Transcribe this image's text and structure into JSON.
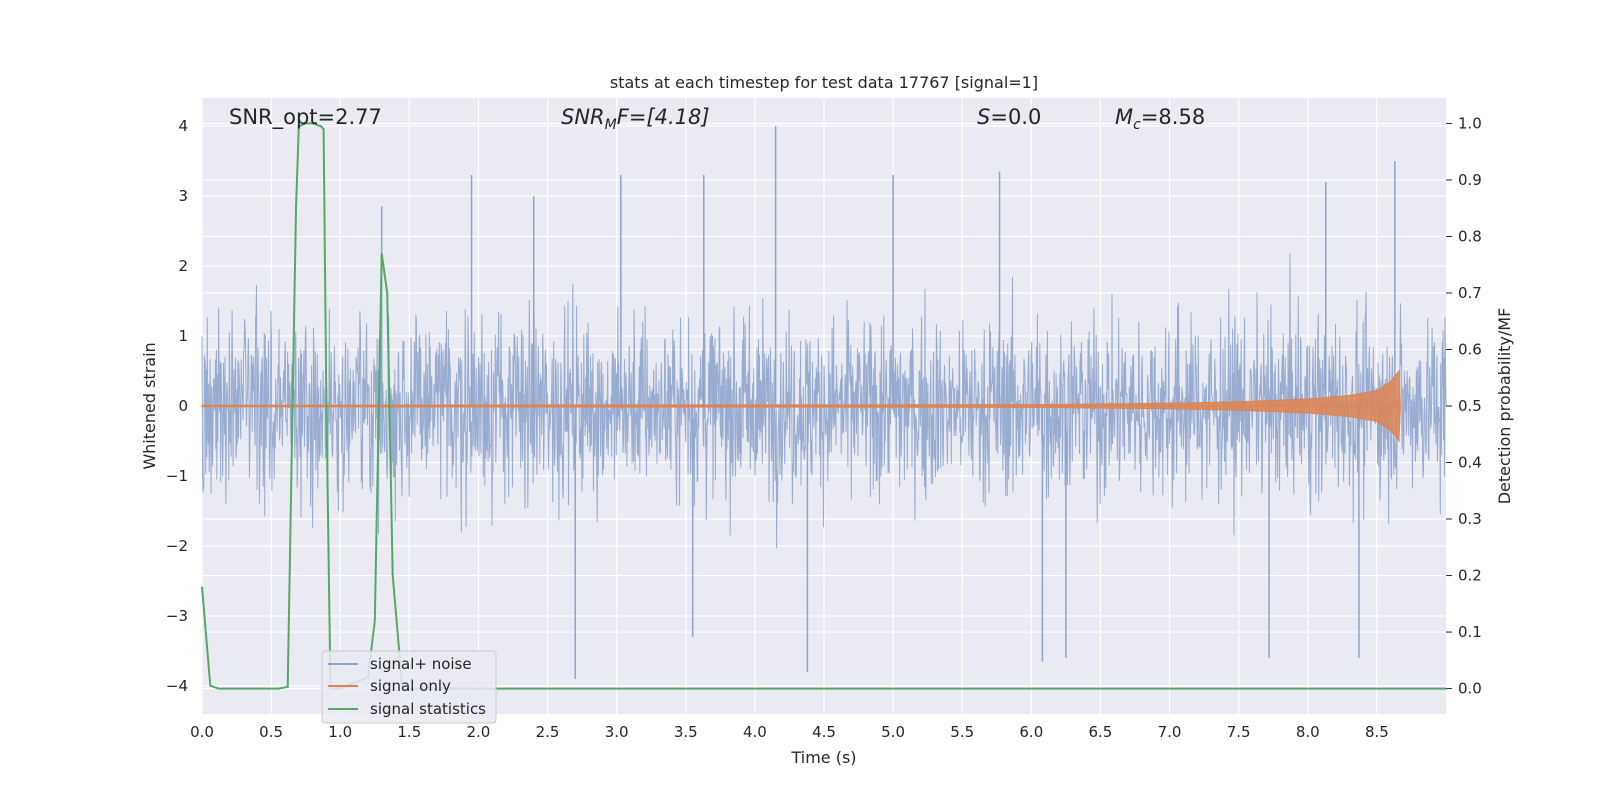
{
  "chart_data": {
    "type": "line",
    "title": "stats at each timestep for test data 17767 [signal=1]",
    "xlabel": "Time (s)",
    "ylabel": "Whitened strain",
    "y2label": "Detection probability/MF",
    "xlim": [
      0.0,
      9.0
    ],
    "ylim": [
      -4.4,
      4.4
    ],
    "y2lim": [
      -0.045,
      1.045
    ],
    "x_ticks": [
      0.0,
      0.5,
      1.0,
      1.5,
      2.0,
      2.5,
      3.0,
      3.5,
      4.0,
      4.5,
      5.0,
      5.5,
      6.0,
      6.5,
      7.0,
      7.5,
      8.0,
      8.5
    ],
    "x_tick_labels": [
      "0.0",
      "0.5",
      "1.0",
      "1.5",
      "2.0",
      "2.5",
      "3.0",
      "3.5",
      "4.0",
      "4.5",
      "5.0",
      "5.5",
      "6.0",
      "6.5",
      "7.0",
      "7.5",
      "8.0",
      "8.5"
    ],
    "y_ticks": [
      4,
      3,
      2,
      1,
      0,
      -1,
      -2,
      -3,
      -4
    ],
    "y_tick_labels": [
      "4",
      "3",
      "2",
      "1",
      "0",
      "−1",
      "−2",
      "−3",
      "−4"
    ],
    "y2_ticks": [
      1.0,
      0.9,
      0.8,
      0.7,
      0.6,
      0.5,
      0.4,
      0.3,
      0.2,
      0.1,
      0.0
    ],
    "y2_tick_labels": [
      "1.0",
      "0.9",
      "0.8",
      "0.7",
      "0.6",
      "0.5",
      "0.4",
      "0.3",
      "0.2",
      "0.1",
      "0.0"
    ],
    "grid": true,
    "legend_position": "bottom-left",
    "annotations": {
      "snr_opt": "SNR_opt=2.77",
      "snr_mf_main": "SNR",
      "snr_mf_sub": "M",
      "snr_mf_rest": "F=[4.18]",
      "s_main": "S",
      "s_rest": "=0.0",
      "mc_main": "M",
      "mc_sub": "c",
      "mc_rest": "=8.58"
    },
    "series": [
      {
        "name": "signal+ noise",
        "color": "#8fa4cc",
        "description_values": "dense noise roughly within -2.5..2.5 with spikes to ~4.0 at t≈4.15 and ~-3.9 at t≈2.7",
        "spikes": [
          [
            4.15,
            4.0
          ],
          [
            5.77,
            3.35
          ],
          [
            2.7,
            -3.9
          ],
          [
            4.38,
            -3.8
          ],
          [
            6.25,
            -3.6
          ],
          [
            6.08,
            -3.65
          ],
          [
            7.72,
            -3.6
          ],
          [
            8.37,
            -3.6
          ],
          [
            3.55,
            -3.3
          ],
          [
            2.4,
            3.0
          ],
          [
            1.95,
            3.3
          ],
          [
            3.03,
            3.3
          ],
          [
            3.63,
            3.3
          ],
          [
            5.0,
            3.3
          ],
          [
            8.63,
            3.5
          ],
          [
            1.3,
            2.85
          ],
          [
            8.13,
            3.2
          ]
        ]
      },
      {
        "name": "signal only",
        "color": "#dd8452",
        "envelope": [
          [
            0.0,
            0.01
          ],
          [
            6.0,
            0.02
          ],
          [
            7.0,
            0.04
          ],
          [
            7.5,
            0.06
          ],
          [
            8.0,
            0.1
          ],
          [
            8.3,
            0.15
          ],
          [
            8.5,
            0.22
          ],
          [
            8.6,
            0.35
          ],
          [
            8.66,
            0.5
          ],
          [
            8.67,
            0.0
          ]
        ]
      },
      {
        "name": "signal statistics",
        "color": "#55a868",
        "axis": "right",
        "x": [
          0.0,
          0.06,
          0.12,
          0.3,
          0.55,
          0.62,
          0.68,
          0.7,
          0.75,
          0.8,
          0.86,
          0.88,
          0.9,
          0.93,
          1.0,
          1.2,
          1.25,
          1.3,
          1.34,
          1.38,
          1.45,
          1.6,
          2.0,
          4.0,
          6.0,
          8.0,
          9.0
        ],
        "values": [
          0.18,
          0.005,
          0.0,
          0.0,
          0.0,
          0.003,
          0.85,
          0.995,
          1.0,
          1.0,
          0.995,
          0.99,
          0.5,
          0.0,
          0.0,
          0.02,
          0.12,
          0.77,
          0.7,
          0.2,
          0.0,
          0.0,
          0.0,
          0.0,
          0.0,
          0.0,
          0.0
        ]
      }
    ]
  }
}
